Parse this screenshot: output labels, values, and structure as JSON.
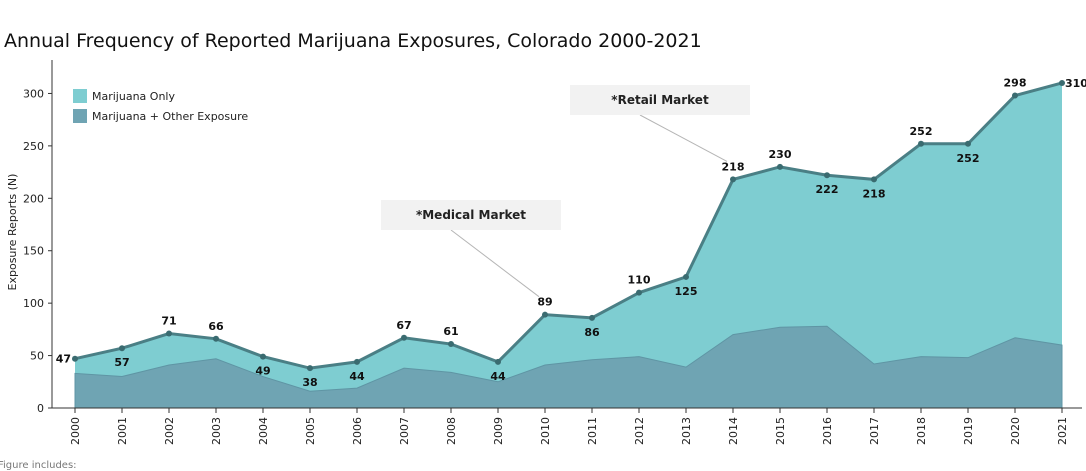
{
  "chart_data": {
    "type": "area",
    "title": "Annual Frequency of Reported Marijuana Exposures, Colorado 2000-2021",
    "ylabel": "Exposure Reports (N)",
    "xlabel": "",
    "ylim": [
      0,
      330
    ],
    "yticks": [
      0,
      50,
      100,
      150,
      200,
      250,
      300
    ],
    "categories": [
      "2000",
      "2001",
      "2002",
      "2003",
      "2004",
      "2005",
      "2006",
      "2007",
      "2008",
      "2009",
      "2010",
      "2011",
      "2012",
      "2013",
      "2014",
      "2015",
      "2016",
      "2017",
      "2018",
      "2019",
      "2020",
      "2021"
    ],
    "series": [
      {
        "name": "Marijuana Only",
        "color": "#7ecdd1",
        "values": [
          47,
          57,
          71,
          66,
          49,
          38,
          44,
          67,
          61,
          44,
          89,
          86,
          110,
          125,
          218,
          230,
          222,
          218,
          252,
          252,
          298,
          310
        ]
      },
      {
        "name": "Marijuana + Other Exposure",
        "color": "#6fa4b3",
        "values": [
          33,
          30,
          41,
          47,
          30,
          16,
          19,
          38,
          34,
          25,
          41,
          46,
          49,
          39,
          70,
          77,
          78,
          42,
          49,
          48,
          67,
          60
        ]
      }
    ],
    "label_positions": [
      "left",
      "below",
      "above",
      "above",
      "below",
      "below",
      "below",
      "above",
      "above",
      "below",
      "above",
      "below",
      "above",
      "below",
      "above",
      "above",
      "below",
      "below",
      "above",
      "below",
      "above",
      "right"
    ],
    "legend_position": "top-left",
    "annotations": [
      {
        "text": "*Medical Market",
        "points_to": "2010"
      },
      {
        "text": "*Retail Market",
        "points_to": "2014"
      }
    ],
    "footnote": "Figure includes:"
  },
  "colors": {
    "line": "#4a7f85",
    "marker": "#3a6b70",
    "axis": "#333333"
  }
}
